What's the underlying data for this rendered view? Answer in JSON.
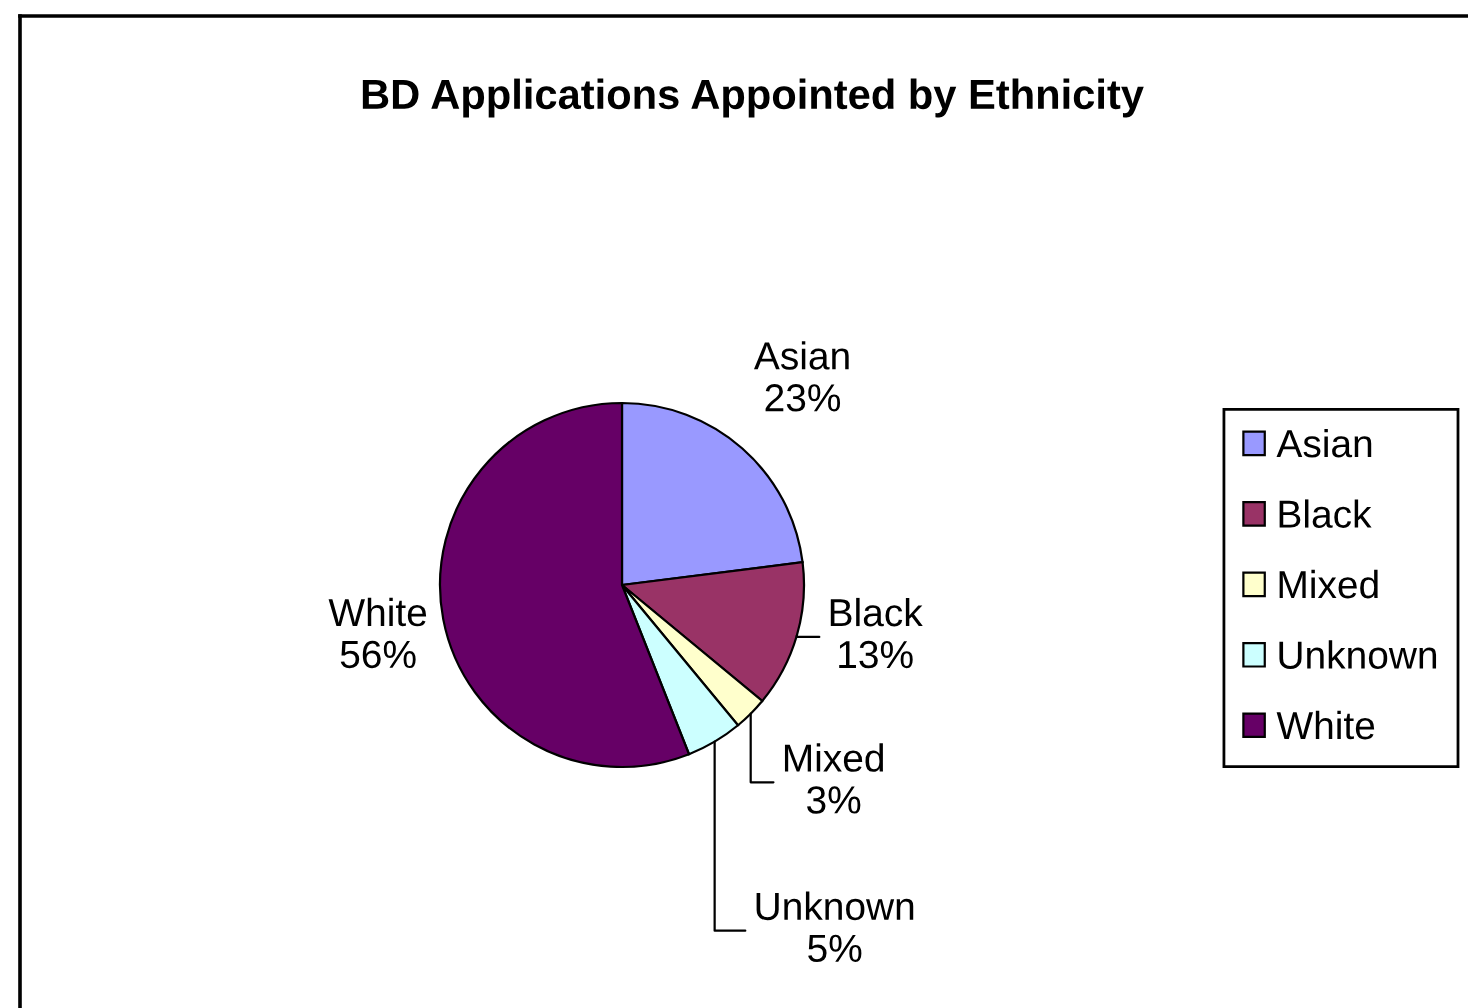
{
  "chart_data": {
    "type": "pie",
    "title": "BD Applications Appointed by Ethnicity",
    "categories": [
      "Asian",
      "Black",
      "Mixed",
      "Unknown",
      "White"
    ],
    "values": [
      23,
      13,
      3,
      5,
      56
    ],
    "value_labels": [
      "23%",
      "13%",
      "3%",
      "5%",
      "56%"
    ],
    "colors": [
      "#9999ff",
      "#993366",
      "#ffffcc",
      "#ccffff",
      "#660066"
    ],
    "legend": "right"
  }
}
